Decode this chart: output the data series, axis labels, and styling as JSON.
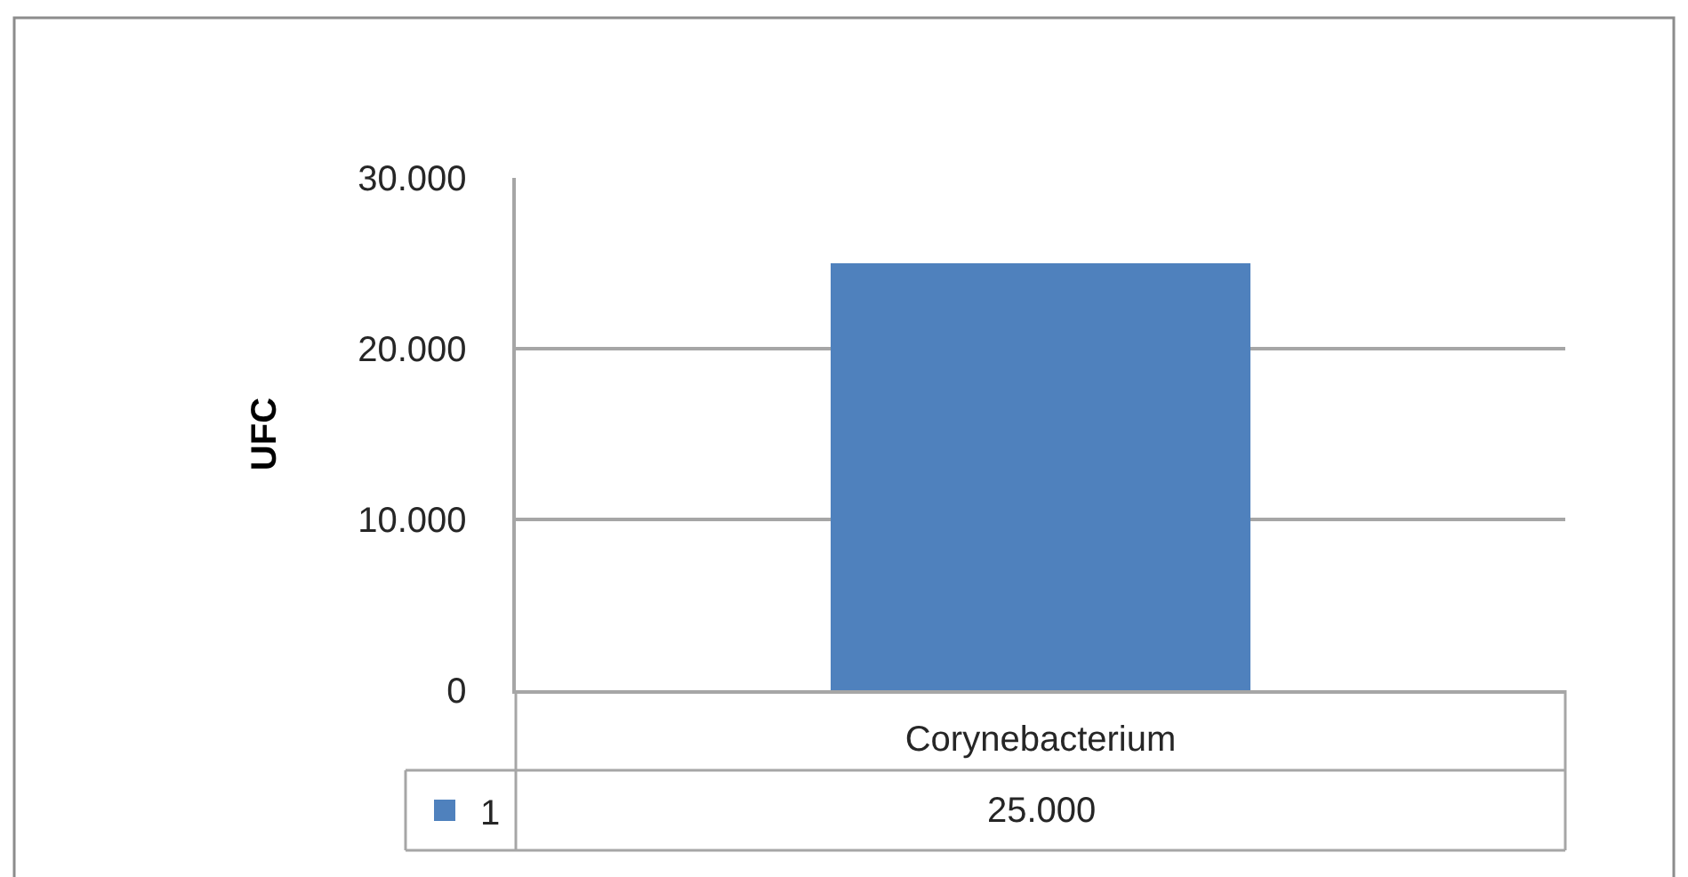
{
  "chart_data": {
    "type": "bar",
    "ylabel": "UFC",
    "categories": [
      "Corynebacterium"
    ],
    "series": [
      {
        "name": "1",
        "color": "#4f81bd",
        "values": [
          25000
        ],
        "value_labels": [
          "25.000"
        ]
      }
    ],
    "ylim": [
      0,
      30000
    ],
    "yticks": [
      0,
      {
        "value": 10000,
        "label": "10.000"
      },
      {
        "value": 20000,
        "label": "20.000"
      },
      {
        "value": 30000,
        "label": "30.000"
      }
    ],
    "grid": "y",
    "legend": "bottom left"
  }
}
